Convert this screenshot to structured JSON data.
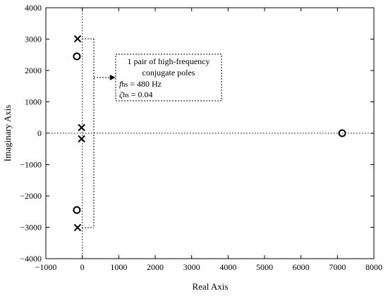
{
  "chart_data": {
    "type": "scatter",
    "title": "",
    "xlabel": "Real Axis",
    "ylabel": "Imaginary Axis",
    "xlim": [
      -1000,
      8000
    ],
    "ylim": [
      -4000,
      4000
    ],
    "xticks": [
      -1000,
      0,
      1000,
      2000,
      3000,
      4000,
      5000,
      6000,
      7000,
      8000
    ],
    "yticks": [
      -4000,
      -3000,
      -2000,
      -1000,
      0,
      1000,
      2000,
      3000,
      4000
    ],
    "xtick_labels": [
      "−1000",
      "0",
      "1000",
      "2000",
      "3000",
      "4000",
      "5000",
      "6000",
      "7000",
      "8000"
    ],
    "ytick_labels": [
      "−4000",
      "−3000",
      "−2000",
      "−1000",
      "0",
      "1000",
      "2000",
      "3000",
      "4000"
    ],
    "grid": false,
    "reference_lines": [
      "x=0 dotted",
      "y=0 dotted"
    ],
    "series": [
      {
        "marker": "x",
        "points": [
          {
            "x": -130,
            "y": 3010
          },
          {
            "x": -130,
            "y": -3010
          },
          {
            "x": -20,
            "y": 180
          },
          {
            "x": -20,
            "y": -180
          }
        ]
      },
      {
        "marker": "o",
        "points": [
          {
            "x": -150,
            "y": 2450
          },
          {
            "x": -150,
            "y": -2450
          },
          {
            "x": 7130,
            "y": 0
          }
        ]
      }
    ],
    "annotation": {
      "lines": [
        "1 pair of high-frequency",
        "conjugate poles",
        "fhs = 480 Hz",
        "ζhs = 0.04"
      ],
      "f_symbol": "f",
      "f_sub": "hs",
      "f_value": " = 480 Hz",
      "zeta_symbol": "ζ",
      "zeta_sub": "hs",
      "zeta_value": " = 0.04",
      "bracket_y": [
        3010,
        -3010
      ],
      "arrow_target_x": 950
    }
  }
}
